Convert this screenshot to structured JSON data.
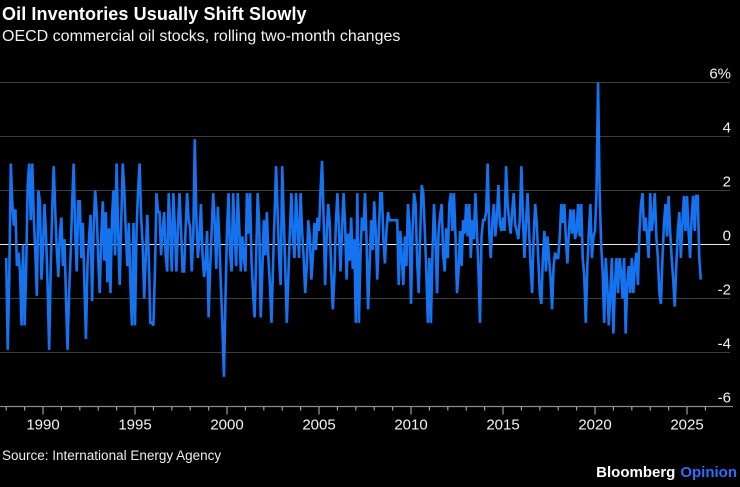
{
  "header": {
    "title": "Oil Inventories Usually Shift Slowly",
    "subtitle": "OECD commercial oil stocks, rolling two-month changes"
  },
  "footer": {
    "source": "Source: International Energy Agency",
    "brand_name": "Bloomberg",
    "brand_section": "Opinion"
  },
  "colors": {
    "background": "#000000",
    "series_line": "#1673f0",
    "gridline": "#3d3d3d",
    "zero_line": "#eaeaea",
    "axis_line": "#8a8a8a",
    "axis_tick": "#9e9e9e",
    "axis_label": "#f2f2f2",
    "brand_blue": "#2e6bff"
  },
  "chart_data": {
    "type": "line",
    "title": "Oil Inventories Usually Shift Slowly",
    "subtitle": "OECD commercial oil stocks, rolling two-month changes",
    "series_name": "OECD commercial oil stocks, rolling two-month change",
    "unit": "%",
    "frequency": "monthly",
    "x_start_year": 1988,
    "x_start_month": 1,
    "x_axis": {
      "minor_tick_start_year": 1988,
      "minor_tick_end_year": 2026,
      "major_tick_years": [
        1990,
        1995,
        2000,
        2005,
        2010,
        2015,
        2020,
        2025
      ]
    },
    "y_axis": {
      "ticks": [
        6,
        4,
        2,
        0,
        -2,
        -4,
        -6
      ],
      "tick_labels": [
        "6%",
        "4",
        "2",
        "0",
        "-2",
        "-4",
        "-6"
      ],
      "range": [
        -6,
        6
      ],
      "zero_line": true
    },
    "grid": "horizontal",
    "legend": "none",
    "values": [
      -0.5,
      -3.9,
      -1.2,
      3.0,
      1.5,
      0.7,
      1.3,
      -0.8,
      -0.3,
      -1.0,
      -3.0,
      0.0,
      -3.0,
      -1.0,
      2.2,
      3.0,
      0.9,
      3.0,
      1.0,
      -0.3,
      -1.9,
      2.0,
      1.6,
      -1.3,
      -0.1,
      1.5,
      0.3,
      -1.5,
      -3.9,
      -1.0,
      1.3,
      2.9,
      1.2,
      -0.2,
      -1.2,
      0.4,
      1.0,
      -0.8,
      0.2,
      -2.0,
      -3.9,
      -1.8,
      -0.4,
      1.5,
      3.0,
      0.5,
      -1.0,
      1.6,
      1.6,
      -0.5,
      0.8,
      -1.5,
      -3.5,
      -0.8,
      0.2,
      1.1,
      -2.1,
      0.5,
      2.0,
      1.2,
      -0.5,
      -1.8,
      0.3,
      1.6,
      -0.6,
      1.2,
      -1.4,
      0.6,
      -1.8,
      1.0,
      2.0,
      -0.4,
      3.0,
      0.5,
      -1.5,
      0.8,
      3.0,
      2.0,
      0.5,
      -0.8,
      0.8,
      -1.5,
      -3.0,
      0.8,
      -3.0,
      0.5,
      2.0,
      3.0,
      1.0,
      0.0,
      -2.0,
      -0.5,
      1.1,
      -0.5,
      -2.9,
      -2.9,
      -3.0,
      -1.0,
      1.9,
      1.2,
      1.2,
      -0.4,
      0.5,
      1.2,
      -0.4,
      -1.0,
      1.9,
      0.6,
      -1.0,
      1.9,
      0.6,
      -1.0,
      0.6,
      1.9,
      0.6,
      -1.0,
      -1.0,
      0.6,
      1.9,
      0.9,
      0.6,
      -1.0,
      0.3,
      3.9,
      1.0,
      -0.5,
      0.2,
      1.5,
      -0.3,
      -1.2,
      -0.8,
      0.5,
      -2.7,
      -0.9,
      0.5,
      1.9,
      0.8,
      -0.9,
      1.4,
      0.2,
      -1.5,
      -3.0,
      -4.9,
      -2.0,
      0.5,
      1.9,
      -0.3,
      -1.0,
      1.9,
      0.4,
      -0.8,
      1.9,
      0.6,
      -1.0,
      0.3,
      -0.5,
      -1.0,
      1.9,
      0.4,
      1.9,
      -0.6,
      -1.8,
      -2.7,
      -0.5,
      1.9,
      0.8,
      -2.7,
      -1.0,
      0.9,
      -0.4,
      1.2,
      -0.5,
      -1.5,
      -2.9,
      -0.8,
      1.0,
      2.9,
      1.2,
      -0.5,
      -1.5,
      2.9,
      1.0,
      -0.9,
      -2.9,
      -1.2,
      0.5,
      1.9,
      0.3,
      -0.5,
      1.9,
      0.7,
      -0.5,
      1.9,
      0.5,
      -0.5,
      -1.8,
      -0.8,
      0.9,
      0.3,
      -1.3,
      -0.5,
      0.8,
      -0.2,
      1.0,
      0.5,
      2.0,
      3.1,
      1.0,
      -1.5,
      0.3,
      1.5,
      0.8,
      -1.0,
      -2.4,
      -1.2,
      0.8,
      1.9,
      0.6,
      -1.0,
      0.5,
      1.9,
      0.8,
      -1.3,
      0.4,
      -0.6,
      1.0,
      -0.9,
      0.2,
      -2.9,
      1.9,
      -2.9,
      -0.5,
      1.0,
      0.5,
      1.9,
      0.2,
      -2.4,
      -0.8,
      0.9,
      -0.2,
      1.6,
      0.5,
      -1.3,
      0.4,
      1.9,
      1.9,
      0.2,
      -0.7,
      0.5,
      1.2,
      0.9,
      0.9,
      0.9,
      0.9,
      0.9,
      0.9,
      -1.5,
      0.5,
      -0.5,
      -1.5,
      0.3,
      -0.8,
      1.5,
      0.8,
      -2.2,
      0.5,
      1.9,
      1.5,
      -0.6,
      -1.8,
      0.3,
      2.2,
      1.9,
      0.5,
      -1.0,
      -2.9,
      -0.5,
      -2.9,
      -0.3,
      1.5,
      0.2,
      -1.8,
      0.5,
      1.1,
      1.5,
      -0.4,
      -1.0,
      0.6,
      -0.5,
      1.5,
      1.9,
      0.5,
      1.9,
      0.3,
      -1.8,
      -1.0,
      0.5,
      -0.8,
      0.9,
      0.4,
      1.5,
      0.3,
      1.5,
      -0.5,
      0.9,
      0.2,
      1.9,
      0.5,
      -0.9,
      -2.9,
      0.3,
      0.9,
      0.9,
      1.2,
      3.0,
      0.5,
      -0.5,
      0.8,
      1.5,
      0.3,
      1.0,
      2.2,
      0.8,
      0.5,
      1.0,
      0.5,
      2.9,
      1.5,
      0.9,
      0.4,
      1.2,
      1.9,
      0.7,
      0.5,
      0.2,
      1.0,
      2.9,
      1.0,
      -0.5,
      0.8,
      1.9,
      0.5,
      -0.8,
      -1.8,
      0.3,
      1.5,
      0.8,
      -0.5,
      -1.8,
      -2.2,
      -0.5,
      0.5,
      -1.0,
      0.3,
      -0.5,
      -1.2,
      -2.4,
      -0.8,
      -0.3,
      -0.5,
      -0.5,
      0.3,
      1.5,
      0.8,
      1.5,
      0.2,
      -0.7,
      0.5,
      1.3,
      0.4,
      1.3,
      0.2,
      0.5,
      1.5,
      0.3,
      1.5,
      -0.5,
      -1.2,
      -2.9,
      -0.8,
      0.5,
      1.5,
      -0.5,
      0.3,
      0.5,
      2.0,
      6.0,
      2.0,
      0.0,
      -1.0,
      -2.9,
      -0.5,
      -1.5,
      -3.0,
      -1.8,
      -0.5,
      -3.3,
      -1.5,
      -0.5,
      -1.8,
      -0.5,
      -1.0,
      -2.0,
      -0.5,
      -3.3,
      -1.5,
      -0.8,
      -1.8,
      -0.5,
      -1.8,
      -0.8,
      -0.3,
      -1.5,
      0.5,
      1.5,
      1.9,
      0.5,
      1.0,
      0.3,
      -0.5,
      1.9,
      0.5,
      1.0,
      1.9,
      0.3,
      -0.5,
      -1.8,
      -2.2,
      -0.5,
      0.8,
      1.5,
      0.3,
      1.8,
      0.5,
      -0.5,
      -1.3,
      -2.3,
      -0.8,
      0.5,
      1.2,
      -0.5,
      0.8,
      1.8,
      0.5,
      1.8,
      0.5,
      -0.5,
      1.0,
      1.8,
      0.5,
      1.8,
      1.8,
      -0.5,
      -1.3
    ]
  }
}
